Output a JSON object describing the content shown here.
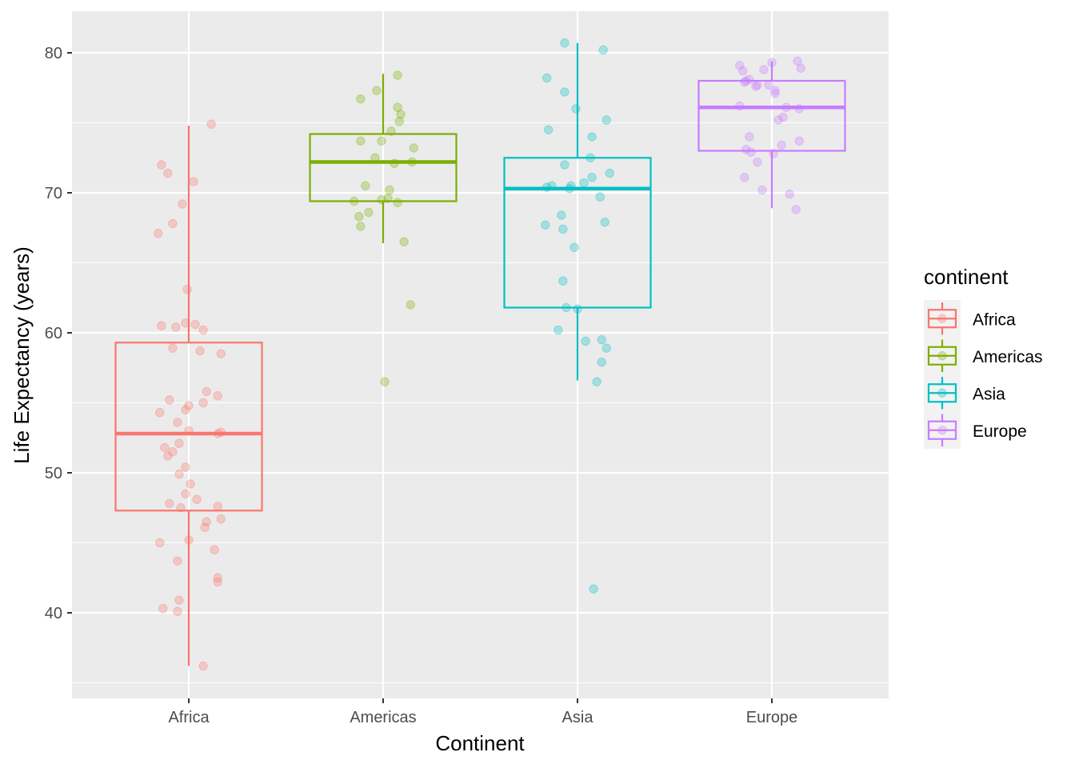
{
  "chart_data": {
    "type": "boxplot",
    "xlabel": "Continent",
    "ylabel": "Life Expectancy (years)",
    "ylim": [
      34,
      83
    ],
    "yticks": [
      40,
      50,
      60,
      70,
      80
    ],
    "grid": true,
    "legend": {
      "title": "continent",
      "placement": "right"
    },
    "categories": [
      "Africa",
      "Americas",
      "Asia",
      "Europe"
    ],
    "series": [
      {
        "name": "Africa",
        "color": "#F8766D",
        "box": {
          "whisker_low": 36.2,
          "q1": 47.3,
          "median": 52.8,
          "q3": 59.3,
          "whisker_high": 74.8
        },
        "points": [
          [
            -0.17,
            72.0
          ],
          [
            -0.13,
            71.4
          ],
          [
            0.03,
            70.8
          ],
          [
            -0.04,
            69.2
          ],
          [
            -0.1,
            67.8
          ],
          [
            -0.19,
            67.1
          ],
          [
            -0.01,
            63.1
          ],
          [
            0.14,
            74.9
          ],
          [
            -0.17,
            60.5
          ],
          [
            -0.08,
            60.4
          ],
          [
            -0.02,
            60.7
          ],
          [
            0.04,
            60.6
          ],
          [
            0.09,
            60.2
          ],
          [
            -0.1,
            58.9
          ],
          [
            0.07,
            58.7
          ],
          [
            0.2,
            58.5
          ],
          [
            0.11,
            55.8
          ],
          [
            0.18,
            55.5
          ],
          [
            -0.12,
            55.2
          ],
          [
            0.0,
            54.8
          ],
          [
            0.09,
            55.0
          ],
          [
            -0.18,
            54.3
          ],
          [
            -0.02,
            54.5
          ],
          [
            -0.07,
            53.6
          ],
          [
            0.0,
            53.0
          ],
          [
            0.18,
            52.8
          ],
          [
            0.2,
            52.9
          ],
          [
            -0.15,
            51.8
          ],
          [
            -0.13,
            51.2
          ],
          [
            -0.1,
            51.5
          ],
          [
            -0.06,
            52.1
          ],
          [
            -0.02,
            50.4
          ],
          [
            -0.06,
            49.9
          ],
          [
            0.01,
            49.2
          ],
          [
            -0.02,
            48.5
          ],
          [
            0.05,
            48.1
          ],
          [
            -0.12,
            47.8
          ],
          [
            -0.05,
            47.5
          ],
          [
            0.18,
            47.6
          ],
          [
            0.11,
            46.5
          ],
          [
            0.1,
            46.1
          ],
          [
            0.2,
            46.7
          ],
          [
            0.0,
            45.2
          ],
          [
            -0.18,
            45.0
          ],
          [
            0.16,
            44.5
          ],
          [
            -0.07,
            43.7
          ],
          [
            0.18,
            42.5
          ],
          [
            0.18,
            42.2
          ],
          [
            -0.06,
            40.9
          ],
          [
            -0.16,
            40.3
          ],
          [
            -0.07,
            40.1
          ],
          [
            0.09,
            36.2
          ]
        ]
      },
      {
        "name": "Americas",
        "color": "#7CAE00",
        "box": {
          "whisker_low": 66.4,
          "q1": 69.4,
          "median": 72.2,
          "q3": 74.2,
          "whisker_high": 78.5
        },
        "points": [
          [
            0.09,
            78.4
          ],
          [
            -0.04,
            77.3
          ],
          [
            -0.14,
            76.7
          ],
          [
            0.09,
            76.1
          ],
          [
            0.11,
            75.6
          ],
          [
            0.1,
            75.1
          ],
          [
            0.05,
            74.4
          ],
          [
            -0.14,
            73.7
          ],
          [
            -0.01,
            73.7
          ],
          [
            0.19,
            73.2
          ],
          [
            -0.05,
            72.5
          ],
          [
            0.07,
            72.1
          ],
          [
            0.18,
            72.2
          ],
          [
            -0.11,
            70.5
          ],
          [
            0.04,
            70.2
          ],
          [
            0.03,
            69.6
          ],
          [
            -0.01,
            69.5
          ],
          [
            -0.18,
            69.4
          ],
          [
            0.09,
            69.3
          ],
          [
            -0.09,
            68.6
          ],
          [
            -0.15,
            68.3
          ],
          [
            -0.14,
            67.6
          ],
          [
            0.13,
            66.5
          ],
          [
            0.17,
            62.0
          ],
          [
            0.01,
            56.5
          ]
        ]
      },
      {
        "name": "Asia",
        "color": "#00BFC4",
        "box": {
          "whisker_low": 56.6,
          "q1": 61.8,
          "median": 70.3,
          "q3": 72.5,
          "whisker_high": 80.7
        },
        "points": [
          [
            -0.08,
            80.7
          ],
          [
            0.16,
            80.2
          ],
          [
            -0.19,
            78.2
          ],
          [
            -0.08,
            77.2
          ],
          [
            -0.01,
            76.0
          ],
          [
            0.18,
            75.2
          ],
          [
            -0.18,
            74.5
          ],
          [
            0.09,
            74.0
          ],
          [
            0.08,
            72.5
          ],
          [
            -0.08,
            72.0
          ],
          [
            0.2,
            71.4
          ],
          [
            0.09,
            71.1
          ],
          [
            0.04,
            70.7
          ],
          [
            -0.04,
            70.5
          ],
          [
            -0.19,
            70.4
          ],
          [
            -0.16,
            70.5
          ],
          [
            -0.05,
            70.3
          ],
          [
            0.14,
            69.7
          ],
          [
            -0.1,
            68.4
          ],
          [
            -0.2,
            67.7
          ],
          [
            -0.09,
            67.4
          ],
          [
            0.17,
            67.9
          ],
          [
            -0.02,
            66.1
          ],
          [
            -0.09,
            63.7
          ],
          [
            -0.07,
            61.8
          ],
          [
            0.0,
            61.7
          ],
          [
            -0.12,
            60.2
          ],
          [
            0.05,
            59.4
          ],
          [
            0.15,
            59.5
          ],
          [
            0.18,
            58.9
          ],
          [
            0.15,
            57.9
          ],
          [
            0.12,
            56.5
          ],
          [
            0.1,
            41.7
          ]
        ]
      },
      {
        "name": "Europe",
        "color": "#C77CFF",
        "box": {
          "whisker_low": 68.9,
          "q1": 73.0,
          "median": 76.1,
          "q3": 78.0,
          "whisker_high": 79.4
        },
        "points": [
          [
            0.0,
            79.3
          ],
          [
            0.16,
            79.4
          ],
          [
            -0.2,
            79.1
          ],
          [
            -0.18,
            78.7
          ],
          [
            -0.05,
            78.8
          ],
          [
            0.18,
            78.9
          ],
          [
            -0.14,
            78.1
          ],
          [
            -0.16,
            78.0
          ],
          [
            -0.17,
            77.9
          ],
          [
            -0.1,
            77.6
          ],
          [
            -0.09,
            77.7
          ],
          [
            -0.02,
            77.7
          ],
          [
            0.02,
            77.3
          ],
          [
            0.02,
            77.1
          ],
          [
            -0.2,
            76.2
          ],
          [
            0.09,
            76.1
          ],
          [
            0.17,
            76.0
          ],
          [
            0.07,
            75.4
          ],
          [
            0.04,
            75.2
          ],
          [
            -0.14,
            74.0
          ],
          [
            0.06,
            73.4
          ],
          [
            0.17,
            73.7
          ],
          [
            -0.16,
            73.1
          ],
          [
            -0.13,
            72.9
          ],
          [
            0.01,
            72.8
          ],
          [
            -0.09,
            72.2
          ],
          [
            -0.17,
            71.1
          ],
          [
            -0.06,
            70.2
          ],
          [
            0.11,
            69.9
          ],
          [
            0.15,
            68.8
          ]
        ]
      }
    ]
  }
}
